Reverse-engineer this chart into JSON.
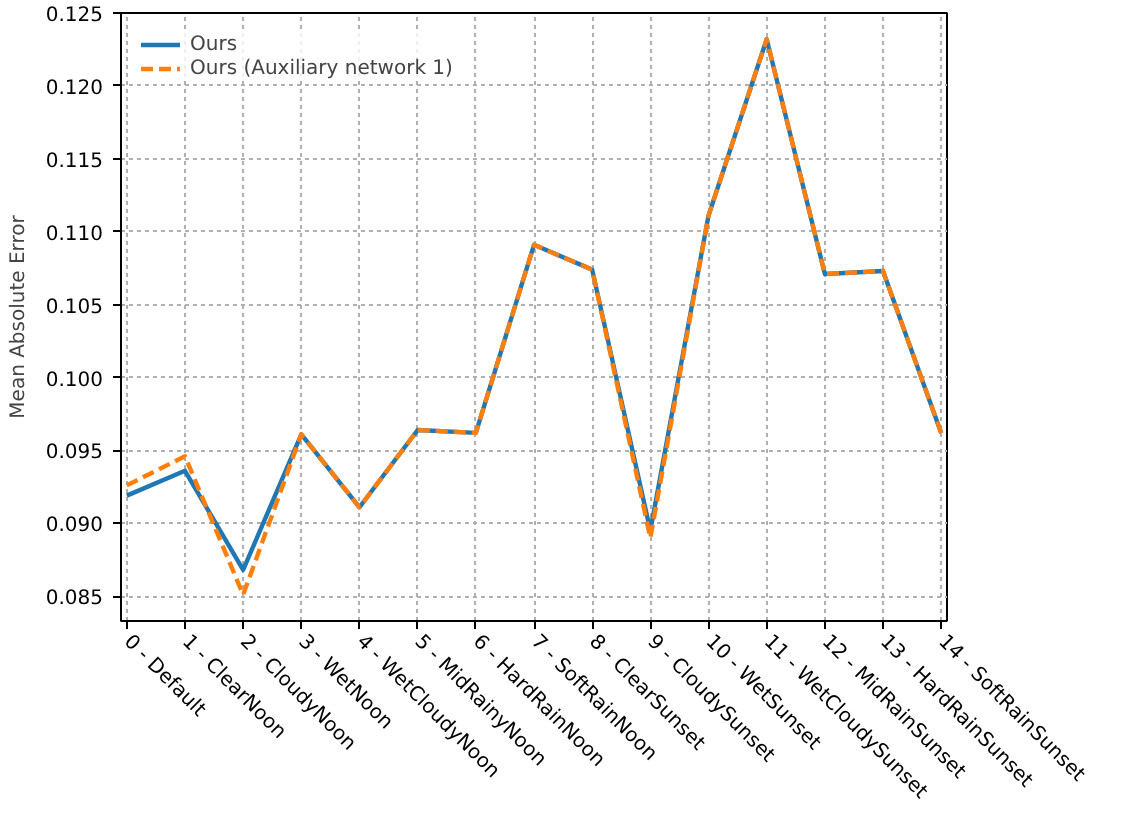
{
  "chart_data": {
    "type": "line",
    "ylabel": "Mean Absolute Error",
    "categories": [
      "0 - Default",
      "1 - ClearNoon",
      "2 - CloudyNoon",
      "3 - WetNoon",
      "4 - WetCloudyNoon",
      "5 - MidRainyNoon",
      "6 - HardRainNoon",
      "7 - SoftRainNoon",
      "8 - ClearSunset",
      "9 - CloudySunset",
      "10 - WetSunset",
      "11 - WetCloudySunset",
      "12 - MidRainSunset",
      "13 - HardRainSunset",
      "14 - SoftRainSunset"
    ],
    "series": [
      {
        "name": "Ours",
        "color": "#1f77b4",
        "line_style": "solid",
        "values": [
          0.0919,
          0.0936,
          0.0868,
          0.0961,
          0.0911,
          0.0964,
          0.0962,
          0.1091,
          0.1074,
          0.0895,
          0.1111,
          0.1232,
          0.1071,
          0.1073,
          0.0962
        ]
      },
      {
        "name": "Ours (Auxiliary network 1)",
        "color": "#ff7f0e",
        "line_style": "dashed",
        "values": [
          0.0926,
          0.0946,
          0.0851,
          0.0961,
          0.0911,
          0.0964,
          0.0962,
          0.1091,
          0.1074,
          0.089,
          0.1111,
          0.1232,
          0.1071,
          0.1073,
          0.0962
        ]
      }
    ],
    "ylim": [
      0.0833,
      0.125
    ],
    "yticks": [
      {
        "value": 0.085,
        "label": "0.085"
      },
      {
        "value": 0.09,
        "label": "0.090"
      },
      {
        "value": 0.095,
        "label": "0.095"
      },
      {
        "value": 0.1,
        "label": "0.100"
      },
      {
        "value": 0.105,
        "label": "0.105"
      },
      {
        "value": 0.11,
        "label": "0.110"
      },
      {
        "value": 0.115,
        "label": "0.115"
      },
      {
        "value": 0.12,
        "label": "0.120"
      },
      {
        "value": 0.125,
        "label": "0.125"
      }
    ],
    "grid": true,
    "legend": "top left"
  }
}
